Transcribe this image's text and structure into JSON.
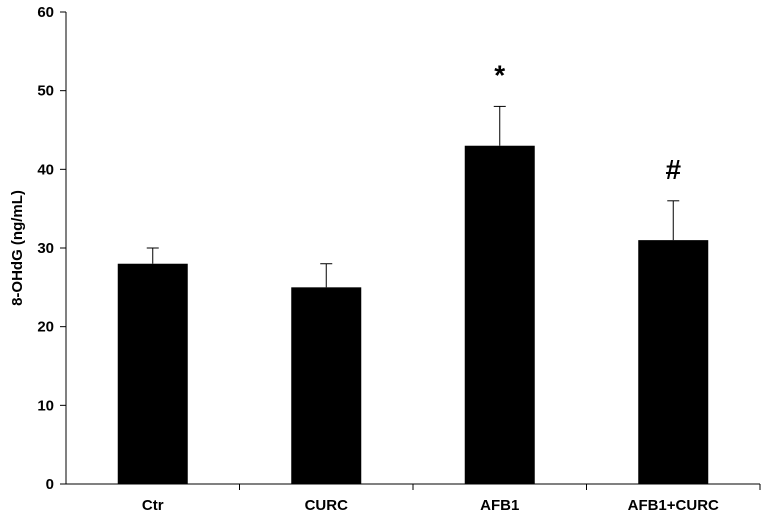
{
  "chart_data": {
    "type": "bar",
    "title": "",
    "xlabel": "",
    "ylabel": "8-OHdG (ng/mL)",
    "categories": [
      "Ctr",
      "CURC",
      "AFB1",
      "AFB1+CURC"
    ],
    "values": [
      28,
      25,
      43,
      31
    ],
    "errors": [
      2,
      3,
      5,
      5
    ],
    "annotations": [
      "",
      "",
      "*",
      "#"
    ],
    "ylim": [
      0,
      60
    ],
    "yticks": [
      "0",
      "10",
      "20",
      "30",
      "40",
      "50",
      "60"
    ],
    "grid": false,
    "legend": "none",
    "bar_color": "#000000"
  }
}
